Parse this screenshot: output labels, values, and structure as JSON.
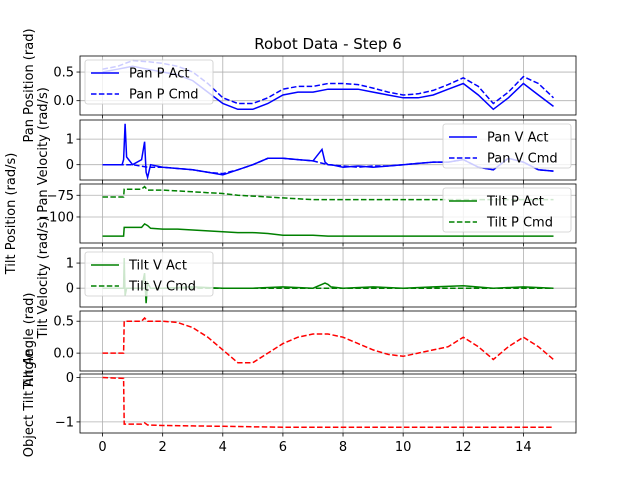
{
  "chart_data": {
    "type": "line",
    "title": "Robot Data - Step 6",
    "xlim": [
      -0.75,
      15.75
    ],
    "x_ticks": [
      0,
      2,
      4,
      6,
      8,
      10,
      12,
      14
    ],
    "grid": true,
    "panels": [
      {
        "ylabel": "Pan Position (rad)",
        "ylim": [
          -0.25,
          0.78
        ],
        "y_ticks": [
          0.0,
          0.5
        ],
        "y_tick_labels": [
          "0.0",
          "0.5"
        ],
        "legend": "upper left",
        "series": [
          {
            "name": "Pan P Act",
            "color": "#0000ff",
            "dash": "solid",
            "x": [
              0,
              0.5,
              1,
              1.5,
              2,
              2.5,
              3,
              3.5,
              4,
              4.5,
              5,
              5.5,
              6,
              6.5,
              7,
              7.5,
              8,
              8.5,
              9,
              9.5,
              10,
              10.5,
              11,
              11.5,
              12,
              12.5,
              13,
              13.5,
              14,
              14.5,
              15
            ],
            "y": [
              0.5,
              0.55,
              0.6,
              0.55,
              0.5,
              0.45,
              0.35,
              0.15,
              -0.05,
              -0.15,
              -0.15,
              -0.05,
              0.1,
              0.15,
              0.15,
              0.2,
              0.2,
              0.2,
              0.15,
              0.1,
              0.05,
              0.05,
              0.1,
              0.2,
              0.3,
              0.1,
              -0.15,
              0.05,
              0.3,
              0.1,
              -0.1
            ]
          },
          {
            "name": "Pan P Cmd",
            "color": "#0000ff",
            "dash": "dashed",
            "x": [
              0,
              0.5,
              1,
              1.5,
              2,
              2.5,
              3,
              3.5,
              4,
              4.5,
              5,
              5.5,
              6,
              6.5,
              7,
              7.5,
              8,
              8.5,
              9,
              9.5,
              10,
              10.5,
              11,
              11.5,
              12,
              12.5,
              13,
              13.5,
              14,
              14.5,
              15
            ],
            "y": [
              0.55,
              0.6,
              0.7,
              0.68,
              0.65,
              0.6,
              0.5,
              0.3,
              0.05,
              -0.05,
              -0.05,
              0.05,
              0.2,
              0.25,
              0.25,
              0.3,
              0.3,
              0.28,
              0.22,
              0.15,
              0.1,
              0.12,
              0.18,
              0.28,
              0.4,
              0.25,
              -0.05,
              0.15,
              0.42,
              0.3,
              0.05
            ]
          }
        ]
      },
      {
        "ylabel": "Pan Velocity (rad/s)",
        "ylim": [
          -0.6,
          1.75
        ],
        "y_ticks": [
          0,
          1
        ],
        "y_tick_labels": [
          "0",
          "1"
        ],
        "legend": "upper right",
        "series": [
          {
            "name": "Pan V Act",
            "color": "#0000ff",
            "dash": "solid",
            "x": [
              0,
              0.5,
              0.65,
              0.7,
              0.75,
              0.8,
              1,
              1.3,
              1.4,
              1.45,
              1.5,
              1.6,
              2,
              2.5,
              3,
              3.5,
              4,
              4.5,
              5,
              5.5,
              6,
              6.5,
              7,
              7.3,
              7.4,
              7.5,
              7.6,
              8,
              8.5,
              9,
              9.5,
              10,
              10.5,
              11,
              11.5,
              12,
              12.5,
              13,
              13.5,
              14,
              14.5,
              15
            ],
            "y": [
              0,
              0,
              0,
              0.2,
              1.6,
              0.3,
              0,
              0.2,
              0.9,
              -0.3,
              -0.5,
              0,
              -0.1,
              -0.15,
              -0.2,
              -0.3,
              -0.4,
              -0.2,
              0,
              0.25,
              0.25,
              0.2,
              0.15,
              0.6,
              0.1,
              0,
              0,
              -0.1,
              -0.05,
              -0.1,
              -0.05,
              0,
              0.05,
              0.1,
              0.1,
              0.2,
              -0.1,
              -0.2,
              0.25,
              0.1,
              -0.2,
              -0.25
            ]
          },
          {
            "name": "Pan V Cmd",
            "color": "#0000ff",
            "dash": "dashed",
            "x": [
              0,
              0.5,
              1,
              1.5,
              2,
              2.5,
              3,
              3.5,
              4,
              4.5,
              5,
              5.5,
              6,
              6.5,
              7,
              7.5,
              8,
              8.5,
              9,
              9.5,
              10,
              10.5,
              11,
              11.5,
              12,
              12.5,
              13,
              13.5,
              14,
              14.5,
              15
            ],
            "y": [
              0,
              0,
              0,
              -0.1,
              -0.1,
              -0.15,
              -0.2,
              -0.3,
              -0.35,
              -0.2,
              0,
              0.25,
              0.25,
              0.2,
              0.15,
              0,
              -0.05,
              -0.1,
              -0.05,
              -0.05,
              0,
              0.05,
              0.1,
              0.1,
              0.2,
              -0.1,
              -0.2,
              0.25,
              0.1,
              -0.2,
              -0.25
            ]
          }
        ]
      },
      {
        "ylabel": "Tilt Position (rad/s)",
        "ylim": [
          -130,
          -62
        ],
        "y_ticks": [
          -100,
          -75
        ],
        "y_tick_labels": [
          "−100",
          "−75"
        ],
        "legend": "upper right",
        "series": [
          {
            "name": "Tilt P Act",
            "color": "#008000",
            "dash": "solid",
            "x": [
              0,
              0.5,
              0.7,
              0.72,
              1,
              1.3,
              1.4,
              1.5,
              1.6,
              2,
              2.5,
              3,
              3.5,
              4,
              4.5,
              5,
              5.5,
              6,
              6.5,
              7,
              7.5,
              8,
              9,
              10,
              11,
              12,
              13,
              14,
              15
            ],
            "y": [
              -122,
              -122,
              -122,
              -112,
              -112,
              -112,
              -108,
              -110,
              -113,
              -114,
              -114,
              -115,
              -116,
              -117,
              -118,
              -118,
              -119,
              -121,
              -121,
              -121,
              -122,
              -122,
              -122,
              -122,
              -122,
              -122,
              -122,
              -122,
              -122
            ]
          },
          {
            "name": "Tilt P Cmd",
            "color": "#008000",
            "dash": "dashed",
            "x": [
              0,
              0.5,
              0.7,
              0.72,
              1,
              1.3,
              1.4,
              1.5,
              2,
              2.5,
              3,
              3.5,
              4,
              4.5,
              5,
              5.5,
              6,
              6.5,
              7,
              7.5,
              8,
              9,
              10,
              11,
              12,
              13,
              14,
              15
            ],
            "y": [
              -77,
              -77,
              -77,
              -68,
              -68,
              -68,
              -65,
              -69,
              -69,
              -70,
              -71,
              -72,
              -73,
              -75,
              -76,
              -77,
              -78,
              -79,
              -80,
              -80,
              -80,
              -80,
              -80,
              -80,
              -80,
              -80,
              -80,
              -80
            ]
          }
        ]
      },
      {
        "ylabel": "Tilt Velocity (rad/s)",
        "ylim": [
          -0.75,
          1.6
        ],
        "y_ticks": [
          0,
          1
        ],
        "y_tick_labels": [
          "0",
          "1"
        ],
        "legend": "upper left",
        "series": [
          {
            "name": "Tilt V Act",
            "color": "#008000",
            "dash": "solid",
            "x": [
              0,
              0.5,
              0.7,
              0.72,
              0.75,
              0.8,
              1,
              1.3,
              1.4,
              1.45,
              1.5,
              1.6,
              2,
              3,
              4,
              5,
              6,
              7,
              7.4,
              7.5,
              7.6,
              8,
              9,
              10,
              11,
              12,
              13,
              14,
              15
            ],
            "y": [
              0,
              0,
              0,
              1.2,
              -0.3,
              0,
              0,
              0,
              0.6,
              -0.6,
              0.2,
              0,
              0,
              0.05,
              0,
              0,
              0.05,
              0,
              0.2,
              0.15,
              0.05,
              0,
              0.05,
              0,
              0.05,
              0.1,
              0,
              0.05,
              0
            ]
          },
          {
            "name": "Tilt V Cmd",
            "color": "#008000",
            "dash": "dashed",
            "x": [
              0,
              15
            ],
            "y": [
              0,
              0
            ]
          }
        ]
      },
      {
        "ylabel": "Tilt Angle (rad)",
        "ylim": [
          -0.28,
          0.66
        ],
        "y_ticks": [
          0.0,
          0.5
        ],
        "y_tick_labels": [
          "0.0",
          "0.5"
        ],
        "legend": "none",
        "series": [
          {
            "name": "",
            "color": "#ff0000",
            "dash": "dashed",
            "x": [
              0,
              0.7,
              0.72,
              1,
              1.3,
              1.4,
              1.5,
              2,
              2.5,
              3,
              3.5,
              4,
              4.5,
              5,
              5.5,
              6,
              6.5,
              7,
              7.5,
              8,
              8.5,
              9,
              9.5,
              10,
              10.5,
              11,
              11.5,
              12,
              12.5,
              13,
              13.5,
              14,
              14.5,
              15
            ],
            "y": [
              0,
              0,
              0.5,
              0.5,
              0.5,
              0.55,
              0.5,
              0.5,
              0.48,
              0.4,
              0.25,
              0.05,
              -0.15,
              -0.15,
              0.0,
              0.15,
              0.25,
              0.3,
              0.3,
              0.25,
              0.15,
              0.05,
              -0.02,
              -0.05,
              0.0,
              0.05,
              0.1,
              0.25,
              0.1,
              -0.1,
              0.1,
              0.25,
              0.1,
              -0.1
            ]
          }
        ]
      },
      {
        "ylabel": "Object Tilt Angle",
        "ylim": [
          -1.25,
          0.08
        ],
        "y_ticks": [
          -1,
          0
        ],
        "y_tick_labels": [
          "−1",
          "0"
        ],
        "legend": "none",
        "series": [
          {
            "name": "",
            "color": "#ff0000",
            "dash": "dashed",
            "x": [
              0,
              0.7,
              0.72,
              1,
              1.3,
              1.4,
              1.5,
              2,
              3,
              4,
              5,
              6,
              7,
              8,
              9,
              10,
              11,
              12,
              13,
              14,
              15
            ],
            "y": [
              0,
              -0.02,
              -1.05,
              -1.05,
              -1.05,
              -1.02,
              -1.07,
              -1.08,
              -1.09,
              -1.1,
              -1.11,
              -1.12,
              -1.12,
              -1.12,
              -1.12,
              -1.12,
              -1.12,
              -1.12,
              -1.12,
              -1.12,
              -1.12
            ]
          }
        ]
      }
    ]
  }
}
